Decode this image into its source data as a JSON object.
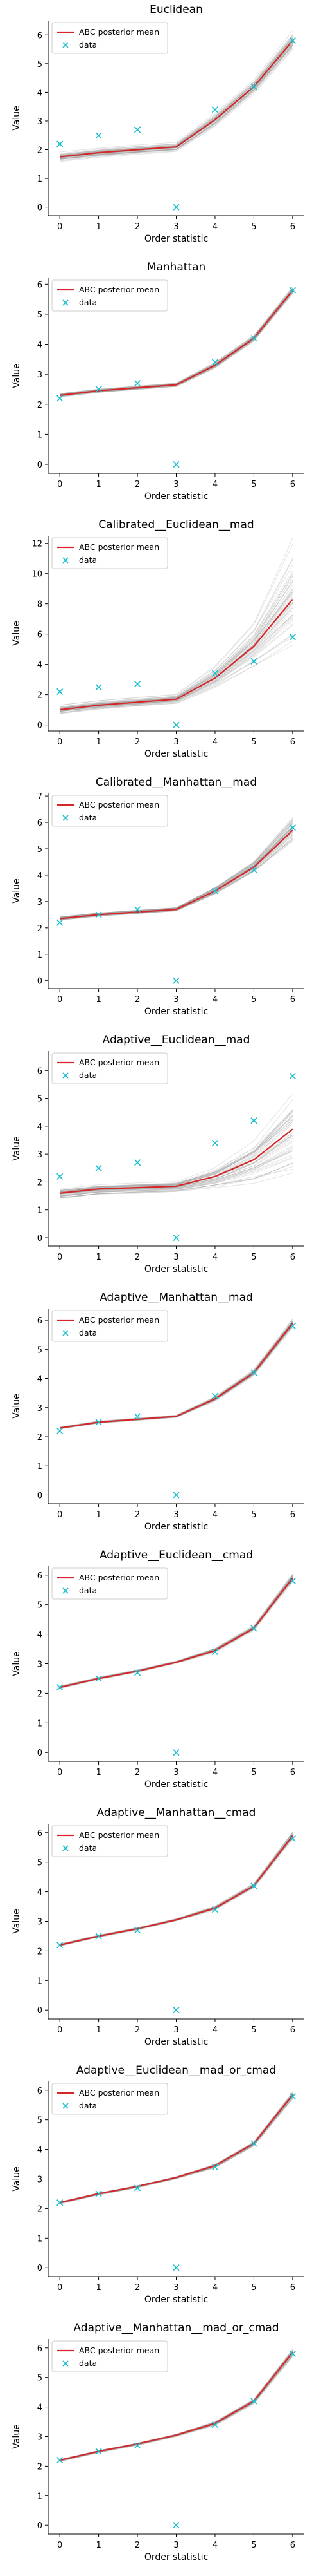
{
  "chart_data": [
    {
      "type": "line",
      "title": "Euclidean",
      "xlabel": "Order statistic",
      "ylabel": "Value",
      "x": [
        0,
        1,
        2,
        3,
        4,
        5,
        6
      ],
      "xticks": [
        "0",
        "1",
        "2",
        "3",
        "4",
        "5",
        "6"
      ],
      "ylim": [
        -0.3,
        6.5
      ],
      "yticks": [
        0,
        1,
        2,
        3,
        4,
        5,
        6
      ],
      "legend": {
        "placement": "top-left",
        "items": [
          "ABC posterior mean",
          "data"
        ]
      },
      "series": [
        {
          "name": "ABC posterior mean",
          "style": "line",
          "color": "#d62728",
          "values": [
            1.75,
            1.9,
            2.0,
            2.1,
            3.05,
            4.2,
            5.8
          ]
        },
        {
          "name": "data",
          "style": "marker-x",
          "color": "#17becf",
          "values": [
            2.2,
            2.5,
            2.7,
            0.0,
            3.4,
            4.2,
            5.8
          ]
        }
      ],
      "posterior_spread": [
        0.1,
        0.1,
        0.1,
        0.1,
        0.15,
        0.15,
        0.2
      ]
    },
    {
      "type": "line",
      "title": "Manhattan",
      "xlabel": "Order statistic",
      "ylabel": "Value",
      "x": [
        0,
        1,
        2,
        3,
        4,
        5,
        6
      ],
      "xticks": [
        "0",
        "1",
        "2",
        "3",
        "4",
        "5",
        "6"
      ],
      "ylim": [
        -0.3,
        6.2
      ],
      "yticks": [
        0,
        1,
        2,
        3,
        4,
        5,
        6
      ],
      "legend": {
        "placement": "top-left",
        "items": [
          "ABC posterior mean",
          "data"
        ]
      },
      "series": [
        {
          "name": "ABC posterior mean",
          "style": "line",
          "color": "#d62728",
          "values": [
            2.3,
            2.45,
            2.55,
            2.65,
            3.3,
            4.2,
            5.8
          ]
        },
        {
          "name": "data",
          "style": "marker-x",
          "color": "#17becf",
          "values": [
            2.2,
            2.5,
            2.7,
            0.0,
            3.4,
            4.2,
            5.8
          ]
        }
      ],
      "posterior_spread": [
        0.05,
        0.05,
        0.05,
        0.05,
        0.08,
        0.08,
        0.1
      ]
    },
    {
      "type": "line",
      "title": "Calibrated__Euclidean__mad",
      "xlabel": "Order statistic",
      "ylabel": "Value",
      "x": [
        0,
        1,
        2,
        3,
        4,
        5,
        6
      ],
      "xticks": [
        "0",
        "1",
        "2",
        "3",
        "4",
        "5",
        "6"
      ],
      "ylim": [
        -0.4,
        12.5
      ],
      "yticks": [
        0,
        2,
        4,
        6,
        8,
        10,
        12
      ],
      "legend": {
        "placement": "top-left",
        "items": [
          "ABC posterior mean",
          "data"
        ]
      },
      "series": [
        {
          "name": "ABC posterior mean",
          "style": "line",
          "color": "#d62728",
          "values": [
            1.0,
            1.3,
            1.5,
            1.7,
            3.1,
            5.2,
            8.3
          ]
        },
        {
          "name": "data",
          "style": "marker-x",
          "color": "#17becf",
          "values": [
            2.2,
            2.5,
            2.7,
            0.0,
            3.4,
            4.2,
            5.8
          ]
        }
      ],
      "posterior_spread": [
        0.2,
        0.2,
        0.2,
        0.2,
        0.5,
        1.0,
        2.5
      ]
    },
    {
      "type": "line",
      "title": "Calibrated__Manhattan__mad",
      "xlabel": "Order statistic",
      "ylabel": "Value",
      "x": [
        0,
        1,
        2,
        3,
        4,
        5,
        6
      ],
      "xticks": [
        "0",
        "1",
        "2",
        "3",
        "4",
        "5",
        "6"
      ],
      "ylim": [
        -0.3,
        7.1
      ],
      "yticks": [
        0,
        1,
        2,
        3,
        4,
        5,
        6,
        7
      ],
      "legend": {
        "placement": "top-left",
        "items": [
          "ABC posterior mean",
          "data"
        ]
      },
      "series": [
        {
          "name": "ABC posterior mean",
          "style": "line",
          "color": "#d62728",
          "values": [
            2.35,
            2.5,
            2.6,
            2.7,
            3.4,
            4.3,
            5.7
          ]
        },
        {
          "name": "data",
          "style": "marker-x",
          "color": "#17becf",
          "values": [
            2.2,
            2.5,
            2.7,
            0.0,
            3.4,
            4.2,
            5.8
          ]
        }
      ],
      "posterior_spread": [
        0.05,
        0.05,
        0.05,
        0.05,
        0.1,
        0.15,
        0.35
      ]
    },
    {
      "type": "line",
      "title": "Adaptive__Euclidean__mad",
      "xlabel": "Order statistic",
      "ylabel": "Value",
      "x": [
        0,
        1,
        2,
        3,
        4,
        5,
        6
      ],
      "xticks": [
        "0",
        "1",
        "2",
        "3",
        "4",
        "5",
        "6"
      ],
      "ylim": [
        -0.3,
        6.7
      ],
      "yticks": [
        0,
        1,
        2,
        3,
        4,
        5,
        6
      ],
      "legend": {
        "placement": "top-left",
        "items": [
          "ABC posterior mean",
          "data"
        ]
      },
      "series": [
        {
          "name": "ABC posterior mean",
          "style": "line",
          "color": "#d62728",
          "values": [
            1.6,
            1.75,
            1.8,
            1.85,
            2.2,
            2.8,
            3.9
          ]
        },
        {
          "name": "data",
          "style": "marker-x",
          "color": "#17becf",
          "values": [
            2.2,
            2.5,
            2.7,
            0.0,
            3.4,
            4.2,
            5.8
          ]
        }
      ],
      "posterior_spread": [
        0.15,
        0.15,
        0.15,
        0.15,
        0.3,
        0.6,
        1.2
      ]
    },
    {
      "type": "line",
      "title": "Adaptive__Manhattan__mad",
      "xlabel": "Order statistic",
      "ylabel": "Value",
      "x": [
        0,
        1,
        2,
        3,
        4,
        5,
        6
      ],
      "xticks": [
        "0",
        "1",
        "2",
        "3",
        "4",
        "5",
        "6"
      ],
      "ylim": [
        -0.3,
        6.4
      ],
      "yticks": [
        0,
        1,
        2,
        3,
        4,
        5,
        6
      ],
      "legend": {
        "placement": "top-left",
        "items": [
          "ABC posterior mean",
          "data"
        ]
      },
      "series": [
        {
          "name": "ABC posterior mean",
          "style": "line",
          "color": "#d62728",
          "values": [
            2.3,
            2.5,
            2.6,
            2.7,
            3.3,
            4.2,
            5.9
          ]
        },
        {
          "name": "data",
          "style": "marker-x",
          "color": "#17becf",
          "values": [
            2.2,
            2.5,
            2.7,
            0.0,
            3.4,
            4.2,
            5.8
          ]
        }
      ],
      "posterior_spread": [
        0.03,
        0.03,
        0.03,
        0.03,
        0.06,
        0.08,
        0.12
      ]
    },
    {
      "type": "line",
      "title": "Adaptive__Euclidean__cmad",
      "xlabel": "Order statistic",
      "ylabel": "Value",
      "x": [
        0,
        1,
        2,
        3,
        4,
        5,
        6
      ],
      "xticks": [
        "0",
        "1",
        "2",
        "3",
        "4",
        "5",
        "6"
      ],
      "ylim": [
        -0.3,
        6.3
      ],
      "yticks": [
        0,
        1,
        2,
        3,
        4,
        5,
        6
      ],
      "legend": {
        "placement": "top-left",
        "items": [
          "ABC posterior mean",
          "data"
        ]
      },
      "series": [
        {
          "name": "ABC posterior mean",
          "style": "line",
          "color": "#d62728",
          "values": [
            2.2,
            2.5,
            2.75,
            3.05,
            3.45,
            4.2,
            5.9
          ]
        },
        {
          "name": "data",
          "style": "marker-x",
          "color": "#17becf",
          "values": [
            2.2,
            2.5,
            2.7,
            0.0,
            3.4,
            4.2,
            5.8
          ]
        }
      ],
      "posterior_spread": [
        0.03,
        0.03,
        0.03,
        0.03,
        0.05,
        0.06,
        0.1
      ]
    },
    {
      "type": "line",
      "title": "Adaptive__Manhattan__cmad",
      "xlabel": "Order statistic",
      "ylabel": "Value",
      "x": [
        0,
        1,
        2,
        3,
        4,
        5,
        6
      ],
      "xticks": [
        "0",
        "1",
        "2",
        "3",
        "4",
        "5",
        "6"
      ],
      "ylim": [
        -0.3,
        6.3
      ],
      "yticks": [
        0,
        1,
        2,
        3,
        4,
        5,
        6
      ],
      "legend": {
        "placement": "top-left",
        "items": [
          "ABC posterior mean",
          "data"
        ]
      },
      "series": [
        {
          "name": "ABC posterior mean",
          "style": "line",
          "color": "#d62728",
          "values": [
            2.2,
            2.5,
            2.75,
            3.05,
            3.45,
            4.2,
            5.9
          ]
        },
        {
          "name": "data",
          "style": "marker-x",
          "color": "#17becf",
          "values": [
            2.2,
            2.5,
            2.7,
            0.0,
            3.4,
            4.2,
            5.8
          ]
        }
      ],
      "posterior_spread": [
        0.03,
        0.03,
        0.03,
        0.03,
        0.05,
        0.06,
        0.1
      ]
    },
    {
      "type": "line",
      "title": "Adaptive__Euclidean__mad_or_cmad",
      "xlabel": "Order statistic",
      "ylabel": "Value",
      "x": [
        0,
        1,
        2,
        3,
        4,
        5,
        6
      ],
      "xticks": [
        "0",
        "1",
        "2",
        "3",
        "4",
        "5",
        "6"
      ],
      "ylim": [
        -0.3,
        6.3
      ],
      "yticks": [
        0,
        1,
        2,
        3,
        4,
        5,
        6
      ],
      "legend": {
        "placement": "top-left",
        "items": [
          "ABC posterior mean",
          "data"
        ]
      },
      "series": [
        {
          "name": "ABC posterior mean",
          "style": "line",
          "color": "#d62728",
          "values": [
            2.2,
            2.5,
            2.75,
            3.05,
            3.45,
            4.2,
            5.85
          ]
        },
        {
          "name": "data",
          "style": "marker-x",
          "color": "#17becf",
          "values": [
            2.2,
            2.5,
            2.7,
            0.0,
            3.4,
            4.2,
            5.8
          ]
        }
      ],
      "posterior_spread": [
        0.03,
        0.03,
        0.03,
        0.03,
        0.05,
        0.06,
        0.1
      ]
    },
    {
      "type": "line",
      "title": "Adaptive__Manhattan__mad_or_cmad",
      "xlabel": "Order statistic",
      "ylabel": "Value",
      "x": [
        0,
        1,
        2,
        3,
        4,
        5,
        6
      ],
      "xticks": [
        "0",
        "1",
        "2",
        "3",
        "4",
        "5",
        "6"
      ],
      "ylim": [
        -0.3,
        6.3
      ],
      "yticks": [
        0,
        1,
        2,
        3,
        4,
        5,
        6
      ],
      "legend": {
        "placement": "top-left",
        "items": [
          "ABC posterior mean",
          "data"
        ]
      },
      "series": [
        {
          "name": "ABC posterior mean",
          "style": "line",
          "color": "#d62728",
          "values": [
            2.2,
            2.5,
            2.75,
            3.05,
            3.45,
            4.2,
            5.85
          ]
        },
        {
          "name": "data",
          "style": "marker-x",
          "color": "#17becf",
          "values": [
            2.2,
            2.5,
            2.7,
            0.0,
            3.4,
            4.2,
            5.8
          ]
        }
      ],
      "posterior_spread": [
        0.03,
        0.03,
        0.03,
        0.03,
        0.05,
        0.06,
        0.1
      ]
    }
  ]
}
